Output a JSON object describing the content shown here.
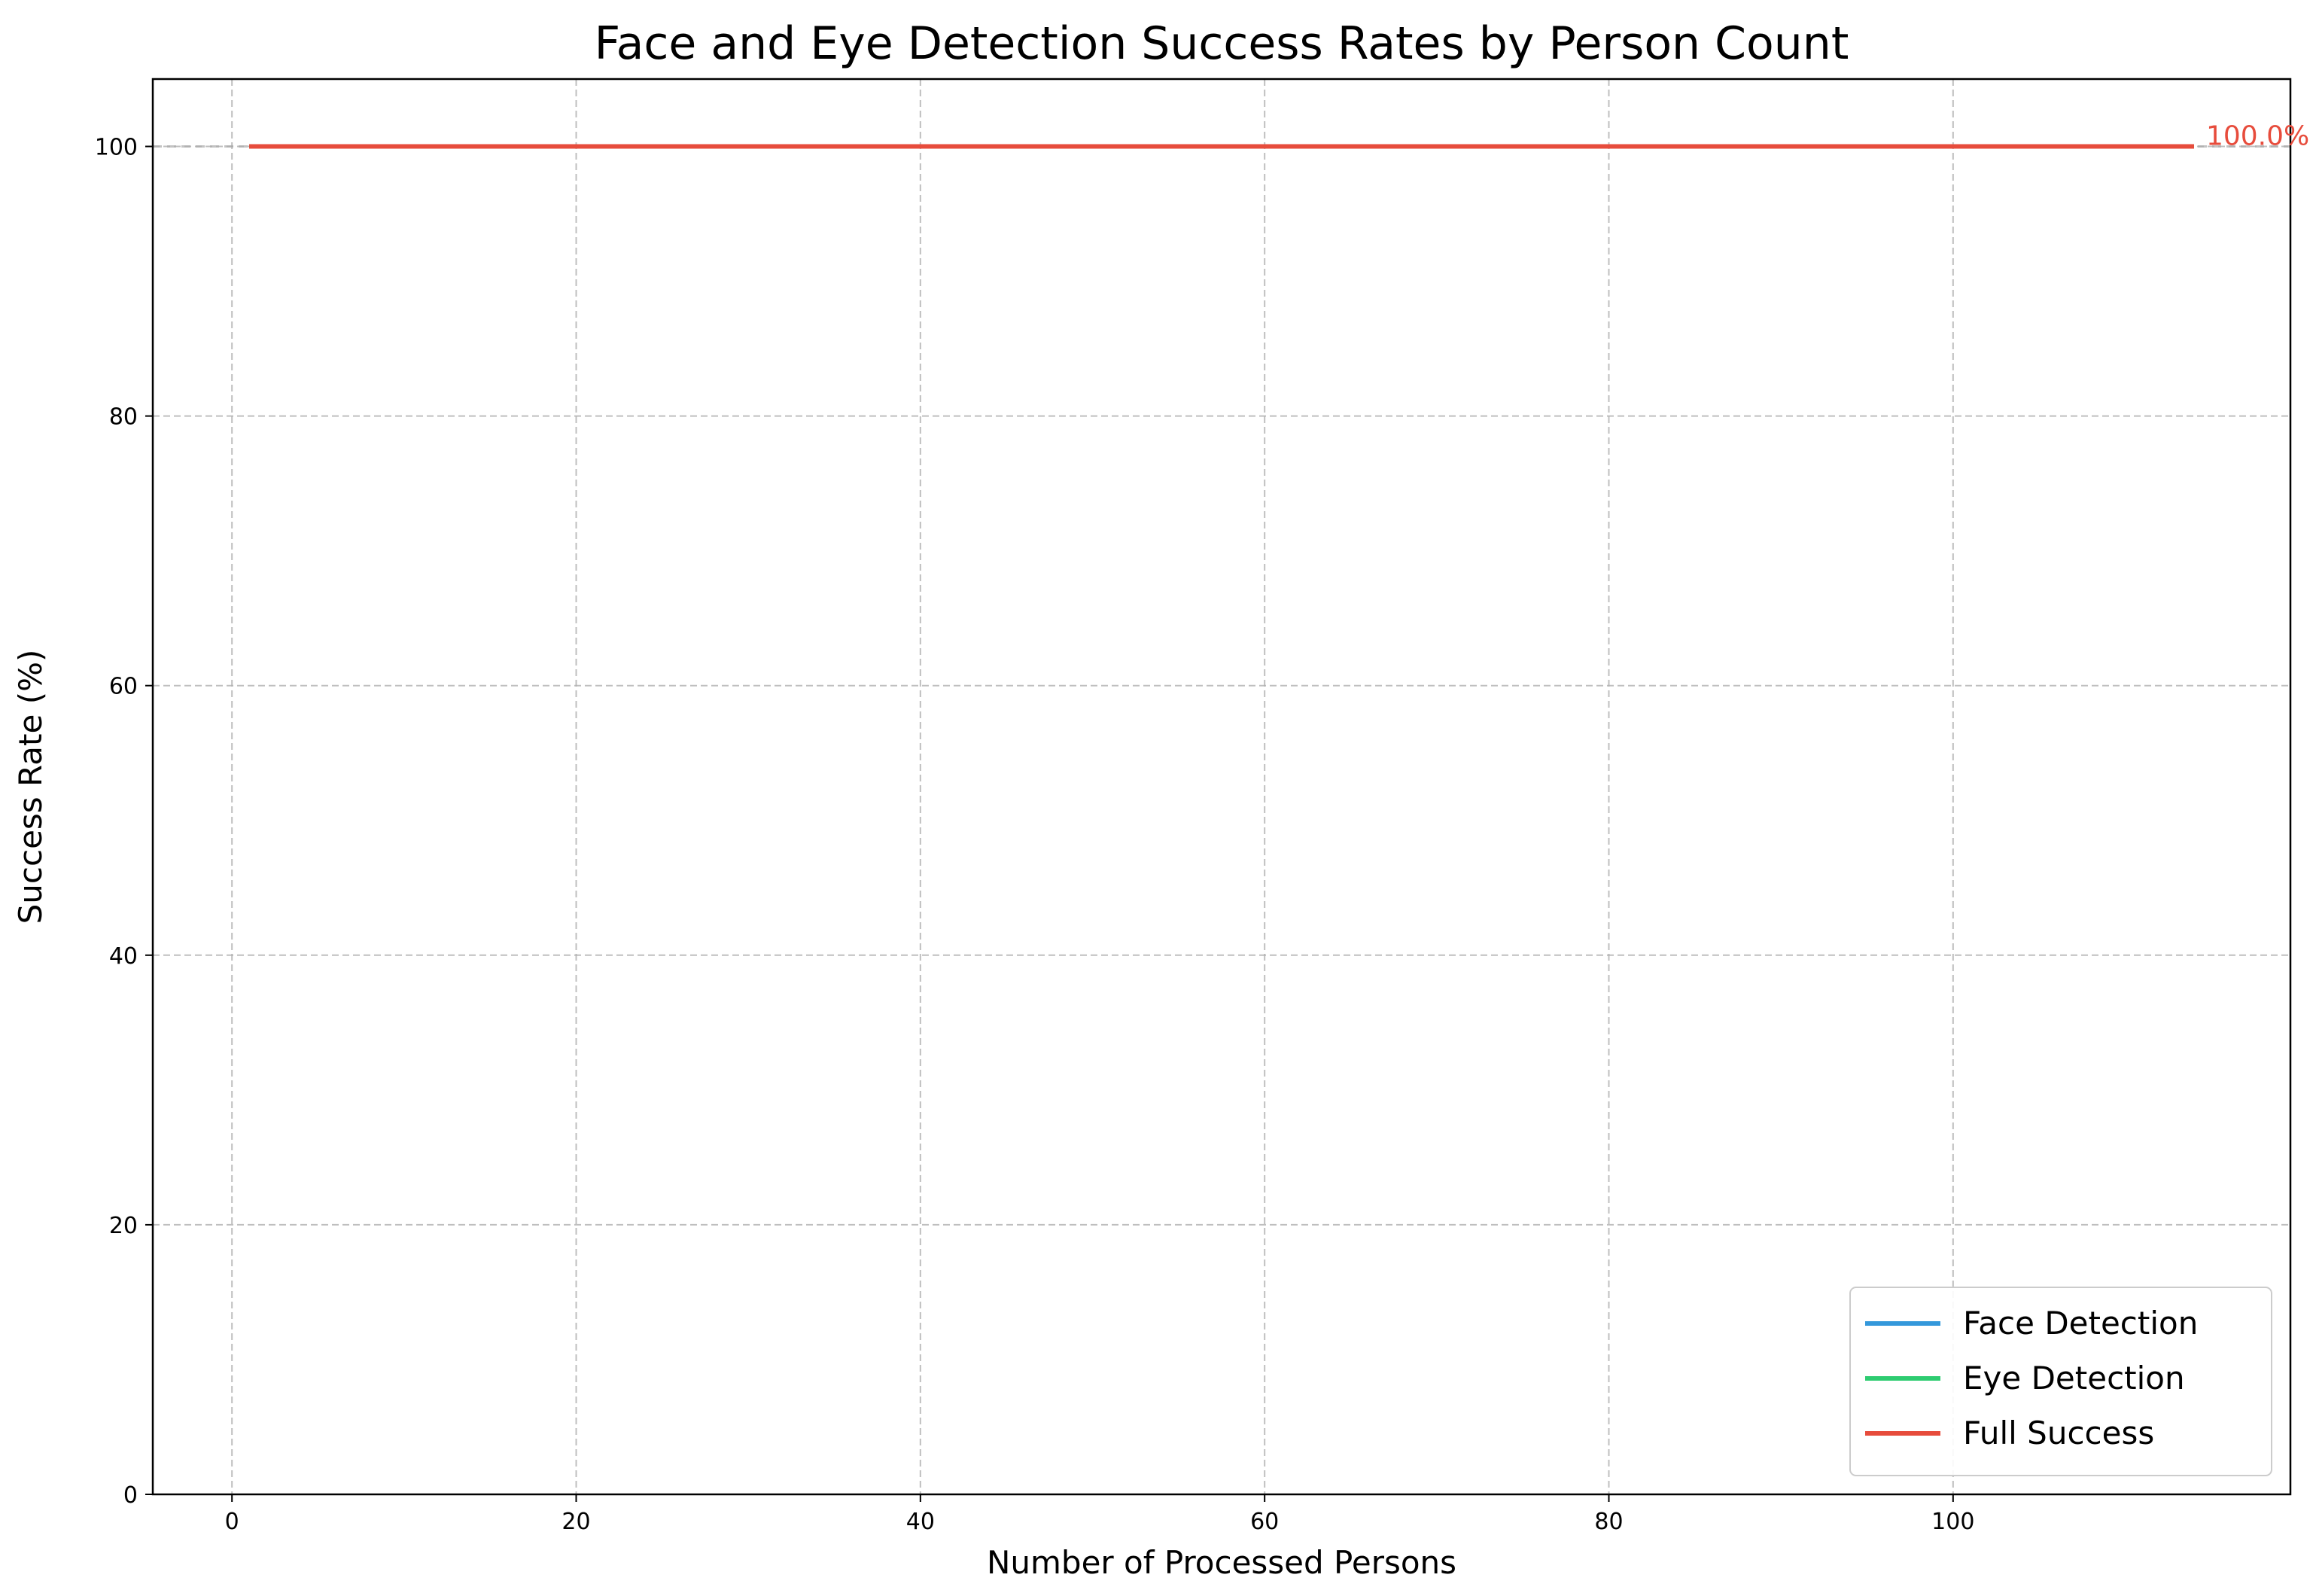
{
  "chart_data": {
    "type": "line",
    "title": "Face and Eye Detection Success Rates by Person Count",
    "xlabel": "Number of Processed Persons",
    "ylabel": "Success Rate (%)",
    "xlim": [
      -4.6,
      119.6
    ],
    "ylim": [
      0,
      105
    ],
    "x_ticks": [
      0,
      20,
      40,
      60,
      80,
      100
    ],
    "y_ticks": [
      0,
      20,
      40,
      60,
      80,
      100
    ],
    "grid": true,
    "legend_position": "lower right",
    "series": [
      {
        "name": "Face Detection",
        "color": "#3498db",
        "x": [
          1,
          114
        ],
        "values": [
          100,
          100
        ]
      },
      {
        "name": "Eye Detection",
        "color": "#2ecc71",
        "x": [
          1,
          114
        ],
        "values": [
          100,
          100
        ]
      },
      {
        "name": "Full Success",
        "color": "#e74c3c",
        "x": [
          1,
          114
        ],
        "values": [
          100,
          100
        ]
      }
    ],
    "reference_line": {
      "y": 100,
      "color": "#aaaaaa",
      "style": "dashed"
    },
    "annotations": [
      {
        "text": "100.0%",
        "x": 114,
        "y": 100,
        "color": "#e74c3c"
      }
    ]
  }
}
